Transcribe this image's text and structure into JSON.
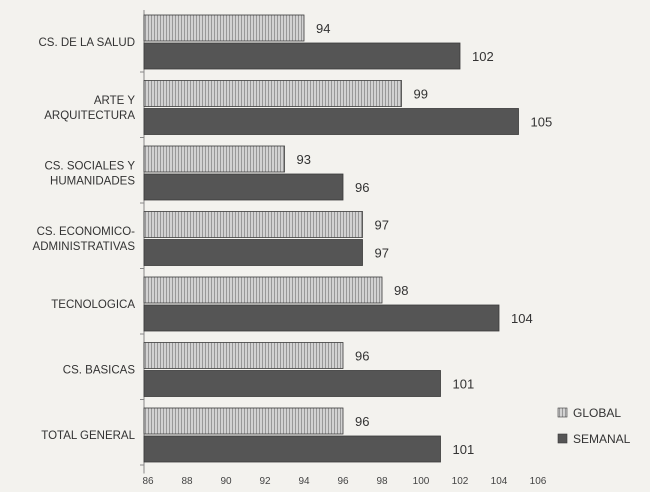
{
  "chart_data": {
    "type": "bar",
    "orientation": "horizontal",
    "categories": [
      "CS. DE LA SALUD",
      "ARTE Y ARQUITECTURA",
      "CS. SOCIALES Y HUMANIDADES",
      "CS. ECONOMICO-ADMINISTRATIVAS",
      "TECNOLOGICA",
      "CS. BASICAS",
      "TOTAL GENERAL"
    ],
    "category_lines": [
      [
        "CS. DE LA SALUD"
      ],
      [
        "ARTE Y",
        "ARQUITECTURA"
      ],
      [
        "CS. SOCIALES Y",
        "HUMANIDADES"
      ],
      [
        "CS. ECONOMICO-",
        "ADMINISTRATIVAS"
      ],
      [
        "TECNOLOGICA"
      ],
      [
        "CS. BASICAS"
      ],
      [
        "TOTAL GENERAL"
      ]
    ],
    "series": [
      {
        "name": "GLOBAL",
        "values": [
          94,
          99,
          93,
          97,
          98,
          96,
          96
        ]
      },
      {
        "name": "SEMANAL",
        "values": [
          102,
          105,
          96,
          97,
          104,
          101,
          101
        ]
      }
    ],
    "xlim": [
      86,
      106
    ],
    "xticks": [
      "86",
      "88",
      "90",
      "92",
      "94",
      "96",
      "98",
      "100",
      "102",
      "104",
      "106"
    ],
    "legend_position": "right",
    "colors": {
      "GLOBAL": "#d0d0d0",
      "SEMANAL": "#555555",
      "background": "#f3f2ee",
      "text": "#333333"
    },
    "grid": false
  }
}
